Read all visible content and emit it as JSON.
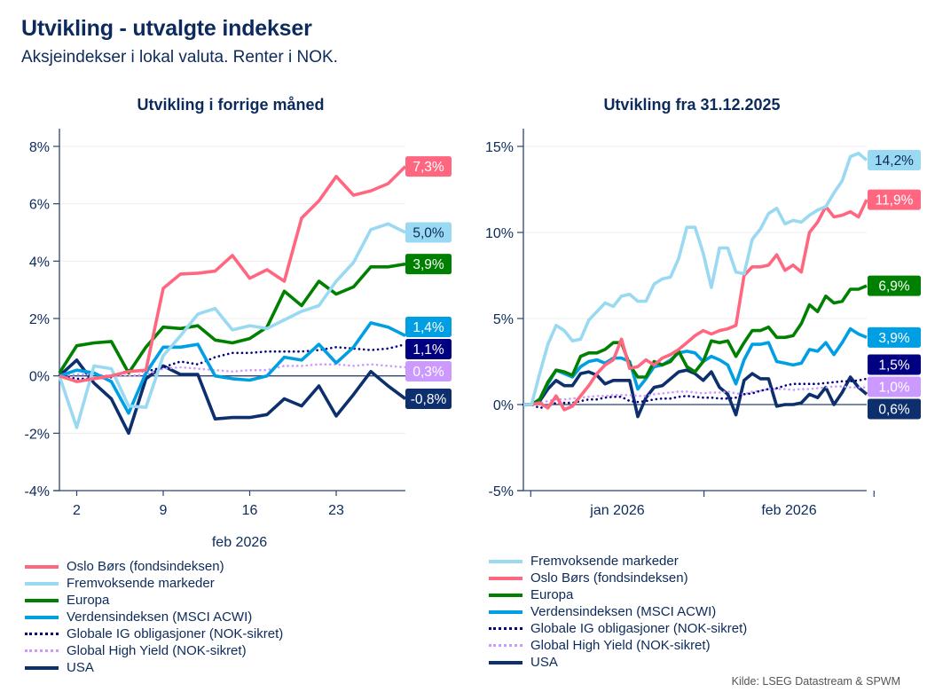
{
  "title": "Utvikling - utvalgte indekser",
  "subtitle": "Aksjeindekser i lokal valuta. Renter i NOK.",
  "source": "Kilde: LSEG Datastream & SPWM",
  "series_styles": {
    "Oslo Børs (fondsindeksen)": {
      "color": "#ff6680",
      "dash": "solid",
      "label_text": "#ffffff"
    },
    "Fremvoksende markeder": {
      "color": "#99d9f2",
      "dash": "solid",
      "label_text": "#0c2a5b"
    },
    "Europa": {
      "color": "#008000",
      "dash": "solid",
      "label_text": "#ffffff"
    },
    "Verdensindeksen (MSCI ACWI)": {
      "color": "#009fe3",
      "dash": "solid",
      "label_text": "#ffffff"
    },
    "Globale IG obligasjoner (NOK-sikret)": {
      "color": "#000080",
      "dash": "dotted",
      "label_text": "#ffffff"
    },
    "Global High Yield (NOK-sikret)": {
      "color": "#cc99ff",
      "dash": "dotted",
      "label_text": "#ffffff"
    },
    "USA": {
      "color": "#0d2f6e",
      "dash": "solid",
      "label_text": "#ffffff"
    }
  },
  "chart_data": [
    {
      "type": "line",
      "title": "Utvikling i forrige måned",
      "xlabel": "feb 2026",
      "ylabel": "",
      "x": [
        "30.01",
        "02.02",
        "03.02",
        "04.02",
        "05.02",
        "06.02",
        "09.02",
        "10.02",
        "11.02",
        "12.02",
        "13.02",
        "16.02",
        "17.02",
        "18.02",
        "19.02",
        "20.02",
        "23.02",
        "24.02",
        "25.02",
        "26.02",
        "27.02"
      ],
      "x_ticks": [
        {
          "at": "02.02",
          "label": "2"
        },
        {
          "at": "09.02",
          "label": "9"
        },
        {
          "at": "16.02",
          "label": "16"
        },
        {
          "at": "23.02",
          "label": "23"
        }
      ],
      "y_ticks": [
        "-4%",
        "-2%",
        "0%",
        "2%",
        "4%",
        "6%",
        "8%"
      ],
      "ylim": [
        -4,
        8
      ],
      "y_unit": "%",
      "grid": true,
      "series": [
        {
          "name": "Oslo Børs (fondsindeksen)",
          "end_label": "7,3%",
          "values": [
            0,
            -0.2,
            -0.1,
            0,
            0.15,
            0.2,
            3.05,
            3.55,
            3.58,
            3.65,
            4.2,
            3.4,
            3.7,
            3.3,
            5.5,
            6.1,
            6.95,
            6.3,
            6.45,
            6.7,
            7.3
          ]
        },
        {
          "name": "Fremvoksende markeder",
          "end_label": "5,0%",
          "values": [
            0,
            -1.8,
            0.35,
            0.25,
            -1.05,
            -1.1,
            0.7,
            1.4,
            2.15,
            2.35,
            1.6,
            1.75,
            1.65,
            1.95,
            2.25,
            2.45,
            3.3,
            3.95,
            5.1,
            5.3,
            5.0
          ]
        },
        {
          "name": "Europa",
          "end_label": "3,9%",
          "values": [
            0.1,
            1.05,
            1.15,
            1.2,
            0.1,
            1.0,
            1.7,
            1.65,
            1.75,
            1.25,
            1.15,
            1.3,
            1.7,
            2.95,
            2.45,
            3.3,
            2.85,
            3.1,
            3.8,
            3.8,
            3.9
          ]
        },
        {
          "name": "Verdensindeksen (MSCI ACWI)",
          "end_label": "1,4%",
          "values": [
            0,
            0.2,
            0.1,
            -0.2,
            -1.3,
            0.1,
            1.0,
            1.0,
            1.1,
            0.0,
            -0.1,
            -0.15,
            0.0,
            0.65,
            0.55,
            1.1,
            0.45,
            1.0,
            1.85,
            1.7,
            1.4
          ]
        },
        {
          "name": "Globale IG obligasjoner (NOK-sikret)",
          "end_label": "1,1%",
          "values": [
            0,
            -0.1,
            -0.1,
            -0.05,
            0.2,
            0.15,
            0.3,
            0.5,
            0.4,
            0.65,
            0.8,
            0.8,
            0.85,
            0.85,
            0.85,
            0.9,
            1.0,
            0.95,
            0.9,
            0.95,
            1.1
          ]
        },
        {
          "name": "Global High Yield (NOK-sikret)",
          "end_label": "0,3%",
          "values": [
            0,
            0.05,
            0.05,
            0,
            0,
            0.05,
            0.25,
            0.3,
            0.25,
            0.2,
            0.15,
            0.2,
            0.2,
            0.35,
            0.35,
            0.4,
            0.4,
            0.35,
            0.4,
            0.35,
            0.3
          ]
        },
        {
          "name": "USA",
          "end_label": "-0,8%",
          "values": [
            0,
            0.55,
            -0.25,
            -0.8,
            -2.0,
            -0.1,
            0.35,
            0.05,
            0.05,
            -1.5,
            -1.45,
            -1.45,
            -1.35,
            -0.8,
            -1.05,
            -0.35,
            -1.4,
            -0.65,
            0.15,
            -0.35,
            -0.8
          ]
        }
      ],
      "legend": [
        "Oslo Børs (fondsindeksen)",
        "Fremvoksende markeder",
        "Europa",
        "Verdensindeksen (MSCI ACWI)",
        "Globale IG obligasjoner (NOK-sikret)",
        "Global High Yield (NOK-sikret)",
        "USA"
      ],
      "legend_placement": "bottom"
    },
    {
      "type": "line",
      "title": "Utvikling fra 31.12.2025",
      "xlabel": "",
      "ylabel": "",
      "x_start": "31.12.2025",
      "x_end": "27.02.2026",
      "x_ticks": [
        {
          "label": "jan 2026"
        },
        {
          "label": "feb 2026"
        }
      ],
      "y_ticks": [
        "-5%",
        "0%",
        "5%",
        "10%",
        "15%"
      ],
      "ylim": [
        -5,
        15
      ],
      "y_unit": "%",
      "grid": true,
      "series": [
        {
          "name": "Fremvoksende markeder",
          "end_label": "14,2%",
          "values": [
            0,
            0,
            1.8,
            3.5,
            4.6,
            4.3,
            3.7,
            3.8,
            4.9,
            5.4,
            5.9,
            5.7,
            6.3,
            6.4,
            6.0,
            6.0,
            7.0,
            7.3,
            7.4,
            8.5,
            10.3,
            10.3,
            8.8,
            6.8,
            9.1,
            9.1,
            7.7,
            7.6,
            9.6,
            10.2,
            11.1,
            11.4,
            10.5,
            10.7,
            10.6,
            11.0,
            11.3,
            11.5,
            12.3,
            13.0,
            14.4,
            14.6,
            14.2
          ]
        },
        {
          "name": "Oslo Børs (fondsindeksen)",
          "end_label": "11,9%",
          "values": [
            0,
            0,
            0.1,
            -0.2,
            0.5,
            -0.3,
            -0.1,
            0.5,
            1.1,
            1.8,
            2.3,
            2.6,
            3.8,
            2.1,
            2.2,
            2.6,
            2.3,
            2.7,
            2.9,
            3.2,
            3.6,
            4.0,
            4.3,
            4.1,
            4.3,
            4.4,
            4.6,
            7.5,
            8.0,
            8.0,
            8.1,
            8.7,
            7.8,
            8.1,
            7.7,
            10.0,
            10.6,
            11.5,
            10.9,
            11.0,
            11.2,
            10.9,
            11.9
          ]
        },
        {
          "name": "Europa",
          "end_label": "6,9%",
          "values": [
            0,
            0,
            0.3,
            1.3,
            2.0,
            1.9,
            1.7,
            2.8,
            3.0,
            3.0,
            3.2,
            3.6,
            3.6,
            2.3,
            1.6,
            1.6,
            2.5,
            2.3,
            2.5,
            3.1,
            2.2,
            1.9,
            2.5,
            3.7,
            3.6,
            3.7,
            2.8,
            3.6,
            4.3,
            4.3,
            4.5,
            3.9,
            3.9,
            4.0,
            4.7,
            5.8,
            5.4,
            6.3,
            5.9,
            6.0,
            6.7,
            6.7,
            6.9
          ]
        },
        {
          "name": "Verdensindeksen (MSCI ACWI)",
          "end_label": "3,9%",
          "values": [
            0,
            0,
            0.3,
            1.2,
            2.0,
            1.8,
            1.6,
            2.2,
            2.5,
            2.6,
            2.4,
            2.7,
            2.7,
            2.5,
            0.9,
            1.5,
            2.2,
            2.3,
            2.6,
            3.0,
            3.1,
            3.0,
            2.5,
            2.8,
            2.6,
            2.3,
            1.2,
            2.6,
            3.5,
            3.5,
            3.6,
            2.5,
            2.4,
            2.3,
            2.4,
            3.2,
            3.1,
            3.6,
            2.9,
            3.6,
            4.4,
            4.1,
            3.9
          ]
        },
        {
          "name": "Globale IG obligasjoner (NOK-sikret)",
          "end_label": "1,5%",
          "values": [
            0,
            0,
            -0.2,
            -0.1,
            0.1,
            0.1,
            0.1,
            0.2,
            0.3,
            0.3,
            0.4,
            0.45,
            0.45,
            0.2,
            0.15,
            0.2,
            0.3,
            0.35,
            0.35,
            0.45,
            0.5,
            0.45,
            0.4,
            0.4,
            0.35,
            0.35,
            0.4,
            0.6,
            0.65,
            0.8,
            0.9,
            0.95,
            1.1,
            1.2,
            1.2,
            1.2,
            1.2,
            1.25,
            1.3,
            1.35,
            1.35,
            1.4,
            1.5
          ]
        },
        {
          "name": "Global High Yield (NOK-sikret)",
          "end_label": "1,0%",
          "values": [
            0,
            0,
            0.1,
            0.2,
            0.3,
            0.3,
            0.35,
            0.4,
            0.45,
            0.5,
            0.5,
            0.55,
            0.55,
            0.55,
            0.5,
            0.5,
            0.6,
            0.65,
            0.7,
            0.75,
            0.75,
            0.7,
            0.65,
            0.7,
            0.7,
            0.75,
            0.65,
            0.6,
            0.75,
            0.8,
            0.9,
            0.9,
            0.9,
            0.85,
            0.9,
            0.9,
            0.95,
            1.0,
            1.05,
            1.05,
            1.0,
            1.0,
            1.0
          ]
        },
        {
          "name": "USA",
          "end_label": "0,6%",
          "values": [
            0,
            0,
            0.2,
            0.9,
            1.4,
            1.1,
            1.1,
            1.8,
            1.9,
            1.7,
            1.2,
            1.4,
            1.4,
            1.4,
            -0.7,
            0.4,
            1.0,
            1.1,
            1.5,
            1.9,
            2.0,
            1.8,
            1.4,
            1.9,
            1.0,
            0.6,
            -0.6,
            1.4,
            1.8,
            1.5,
            1.5,
            -0.1,
            0.0,
            0.0,
            0.1,
            0.6,
            0.4,
            1.0,
            0.0,
            0.7,
            1.6,
            1.0,
            0.6
          ]
        }
      ],
      "legend": [
        "Fremvoksende markeder",
        "Oslo Børs (fondsindeksen)",
        "Europa",
        "Verdensindeksen (MSCI ACWI)",
        "Globale IG obligasjoner (NOK-sikret)",
        "Global High Yield (NOK-sikret)",
        "USA"
      ],
      "legend_placement": "bottom"
    }
  ]
}
